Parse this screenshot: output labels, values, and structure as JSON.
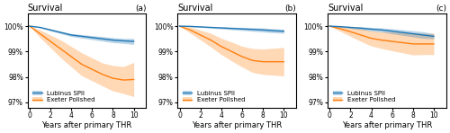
{
  "chart_data": [
    {
      "type": "line",
      "title": "Survival",
      "annotation": "(a)",
      "xlabel": "Years after primary THR",
      "xlim": [
        -0.2,
        11.2
      ],
      "ylim": [
        96.8,
        100.5
      ],
      "xticks": [
        0,
        2,
        4,
        6,
        8,
        10
      ],
      "yticks": [
        {
          "value": 97,
          "label": "97%"
        },
        {
          "value": 98,
          "label": "98%"
        },
        {
          "value": 99,
          "label": "99%"
        },
        {
          "value": 100,
          "label": "100%"
        }
      ],
      "grid": false,
      "legend": "lower left",
      "series": [
        {
          "name": "Lubinus SPII",
          "x": [
            0,
            1,
            2,
            3,
            4,
            5,
            6,
            7,
            8,
            9,
            10
          ],
          "values": [
            100.0,
            99.95,
            99.85,
            99.75,
            99.65,
            99.6,
            99.55,
            99.5,
            99.45,
            99.42,
            99.4
          ],
          "lower": [
            100.0,
            99.93,
            99.81,
            99.7,
            99.59,
            99.53,
            99.47,
            99.41,
            99.35,
            99.32,
            99.28
          ],
          "upper": [
            100.0,
            99.97,
            99.89,
            99.8,
            99.71,
            99.67,
            99.63,
            99.59,
            99.55,
            99.52,
            99.52
          ]
        },
        {
          "name": "Exeter Polished",
          "x": [
            0,
            1,
            2,
            3,
            4,
            5,
            6,
            7,
            8,
            9,
            10
          ],
          "values": [
            100.0,
            99.7,
            99.4,
            99.1,
            98.8,
            98.5,
            98.3,
            98.1,
            97.95,
            97.88,
            97.9
          ],
          "lower": [
            100.0,
            99.55,
            99.15,
            98.75,
            98.4,
            98.05,
            97.85,
            97.65,
            97.45,
            97.35,
            97.23
          ],
          "upper": [
            100.0,
            99.85,
            99.65,
            99.45,
            99.2,
            98.95,
            98.75,
            98.55,
            98.45,
            98.41,
            98.57
          ]
        }
      ]
    },
    {
      "type": "line",
      "title": "Survival",
      "annotation": "(b)",
      "xlabel": "Years after primary THR",
      "xlim": [
        -0.2,
        11.2
      ],
      "ylim": [
        96.8,
        100.5
      ],
      "xticks": [
        0,
        2,
        4,
        6,
        8,
        10
      ],
      "yticks": [
        {
          "value": 97,
          "label": "97%"
        },
        {
          "value": 98,
          "label": "98%"
        },
        {
          "value": 99,
          "label": "99%"
        },
        {
          "value": 100,
          "label": "100%"
        }
      ],
      "grid": false,
      "legend": "lower left",
      "series": [
        {
          "name": "Lubinus SPII",
          "x": [
            0,
            1,
            2,
            3,
            4,
            5,
            6,
            7,
            8,
            9,
            10
          ],
          "values": [
            100.0,
            99.99,
            99.97,
            99.95,
            99.93,
            99.91,
            99.89,
            99.87,
            99.85,
            99.82,
            99.8
          ],
          "lower": [
            100.0,
            99.98,
            99.95,
            99.92,
            99.89,
            99.86,
            99.83,
            99.8,
            99.77,
            99.74,
            99.72
          ],
          "upper": [
            100.0,
            100.0,
            99.99,
            99.98,
            99.97,
            99.96,
            99.95,
            99.94,
            99.93,
            99.9,
            99.88
          ]
        },
        {
          "name": "Exeter Polished",
          "x": [
            0,
            1,
            2,
            3,
            4,
            5,
            6,
            7,
            8,
            9,
            10
          ],
          "values": [
            100.0,
            99.85,
            99.65,
            99.45,
            99.2,
            99.0,
            98.8,
            98.65,
            98.6,
            98.6,
            98.6
          ],
          "lower": [
            100.0,
            99.73,
            99.46,
            99.18,
            98.88,
            98.63,
            98.39,
            98.18,
            98.1,
            98.07,
            98.04
          ],
          "upper": [
            100.0,
            99.97,
            99.84,
            99.72,
            99.52,
            99.37,
            99.21,
            99.12,
            99.1,
            99.13,
            99.16
          ]
        }
      ]
    },
    {
      "type": "line",
      "title": "Survival",
      "annotation": "(c)",
      "xlabel": "Years after primary THR",
      "xlim": [
        -0.2,
        11.2
      ],
      "ylim": [
        96.8,
        100.5
      ],
      "xticks": [
        0,
        2,
        4,
        6,
        8,
        10
      ],
      "yticks": [
        {
          "value": 97,
          "label": "97%"
        },
        {
          "value": 98,
          "label": "98%"
        },
        {
          "value": 99,
          "label": "99%"
        },
        {
          "value": 100,
          "label": "100%"
        }
      ],
      "grid": false,
      "legend": "lower left",
      "series": [
        {
          "name": "Lubinus SPII",
          "x": [
            0,
            1,
            2,
            3,
            4,
            5,
            6,
            7,
            8,
            9,
            10
          ],
          "values": [
            100.0,
            99.98,
            99.95,
            99.92,
            99.88,
            99.85,
            99.8,
            99.75,
            99.7,
            99.65,
            99.6
          ],
          "lower": [
            100.0,
            99.96,
            99.91,
            99.86,
            99.81,
            99.77,
            99.7,
            99.64,
            99.58,
            99.52,
            99.5
          ],
          "upper": [
            100.0,
            100.0,
            99.99,
            99.98,
            99.95,
            99.93,
            99.9,
            99.86,
            99.82,
            99.78,
            99.7
          ]
        },
        {
          "name": "Exeter Polished",
          "x": [
            0,
            1,
            2,
            3,
            4,
            5,
            6,
            7,
            8,
            9,
            10
          ],
          "values": [
            100.0,
            99.9,
            99.78,
            99.65,
            99.52,
            99.45,
            99.4,
            99.35,
            99.3,
            99.3,
            99.3
          ],
          "lower": [
            100.0,
            99.8,
            99.6,
            99.4,
            99.22,
            99.12,
            99.03,
            98.95,
            98.87,
            98.88,
            98.88
          ],
          "upper": [
            100.0,
            100.0,
            99.96,
            99.9,
            99.82,
            99.78,
            99.77,
            99.75,
            99.73,
            99.72,
            99.72
          ]
        }
      ]
    }
  ]
}
